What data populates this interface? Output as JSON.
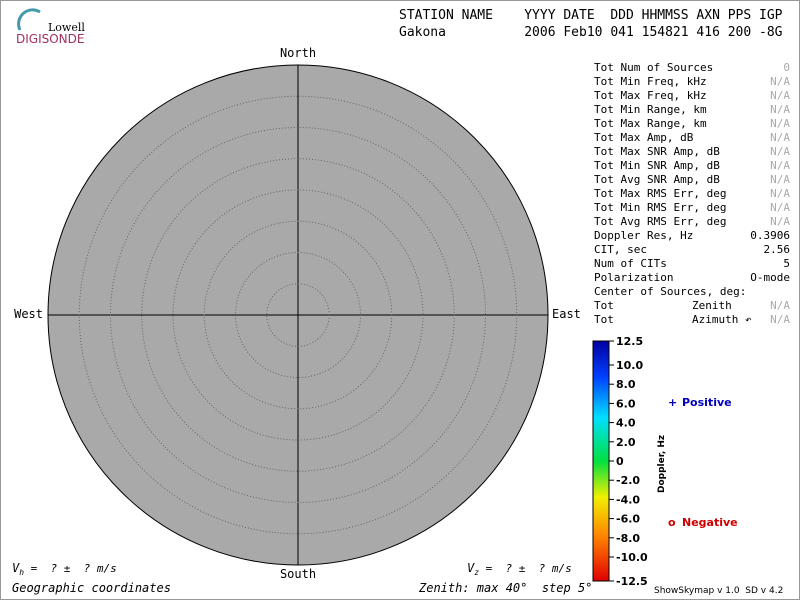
{
  "logo": {
    "top": "Lowell",
    "bottom": "DIGISONDE"
  },
  "header": {
    "labels": "STATION NAME    YYYY DATE  DDD HHMMSS AXN PPS IGP",
    "values": "Gakona          2006 Feb10 041 154821 416 200 -8G"
  },
  "compass": {
    "north": "North",
    "south": "South",
    "east": "East",
    "west": "West"
  },
  "stats": [
    [
      "Tot Num of Sources",
      "0"
    ],
    [
      "Tot Min Freq, kHz",
      "N/A"
    ],
    [
      "Tot Max Freq, kHz",
      "N/A"
    ],
    [
      "Tot Min Range, km",
      "N/A"
    ],
    [
      "Tot Max Range, km",
      "N/A"
    ],
    [
      "Tot Max Amp, dB",
      "N/A"
    ],
    [
      "Tot Max SNR Amp, dB",
      "N/A"
    ],
    [
      "Tot Min SNR Amp, dB",
      "N/A"
    ],
    [
      "Tot Avg SNR Amp, dB",
      "N/A"
    ],
    [
      "Tot Max RMS Err, deg",
      "N/A"
    ],
    [
      "Tot Min RMS Err, deg",
      "N/A"
    ],
    [
      "Tot Avg RMS Err, deg",
      "N/A"
    ],
    [
      "Doppler Res, Hz",
      "0.3906"
    ],
    [
      "CIT, sec",
      "2.56"
    ],
    [
      "Num of CITs",
      "5"
    ],
    [
      "Polarization",
      "O-mode"
    ]
  ],
  "center": {
    "title": "Center of Sources, deg:",
    "rows": [
      [
        "Tot",
        "Zenith",
        "N/A"
      ],
      [
        "Tot",
        "Azimuth ↶",
        "N/A"
      ]
    ]
  },
  "colorbar": {
    "ticks": [
      "12.5",
      "10.0",
      "8.0",
      "6.0",
      "4.0",
      "2.0",
      "0",
      "-2.0",
      "-4.0",
      "-6.0",
      "-8.0",
      "-10.0",
      "-12.5"
    ],
    "label": "Doppler, Hz"
  },
  "legend": {
    "positive_symbol": "+",
    "positive": "Positive",
    "negative_symbol": "o",
    "negative": "Negative"
  },
  "footer": {
    "vh_v": "V",
    "vh_sub": "h",
    "vh_rest": " =  ? ±  ? m/s",
    "vz_v": "V",
    "vz_sub": "z",
    "vz_rest": " =  ? ±  ? m/s",
    "coordinates": "Geographic coordinates",
    "zenith": "Zenith: max 40°  step 5°",
    "version": "ShowSkymap v 1.0  SD v 4.2"
  }
}
